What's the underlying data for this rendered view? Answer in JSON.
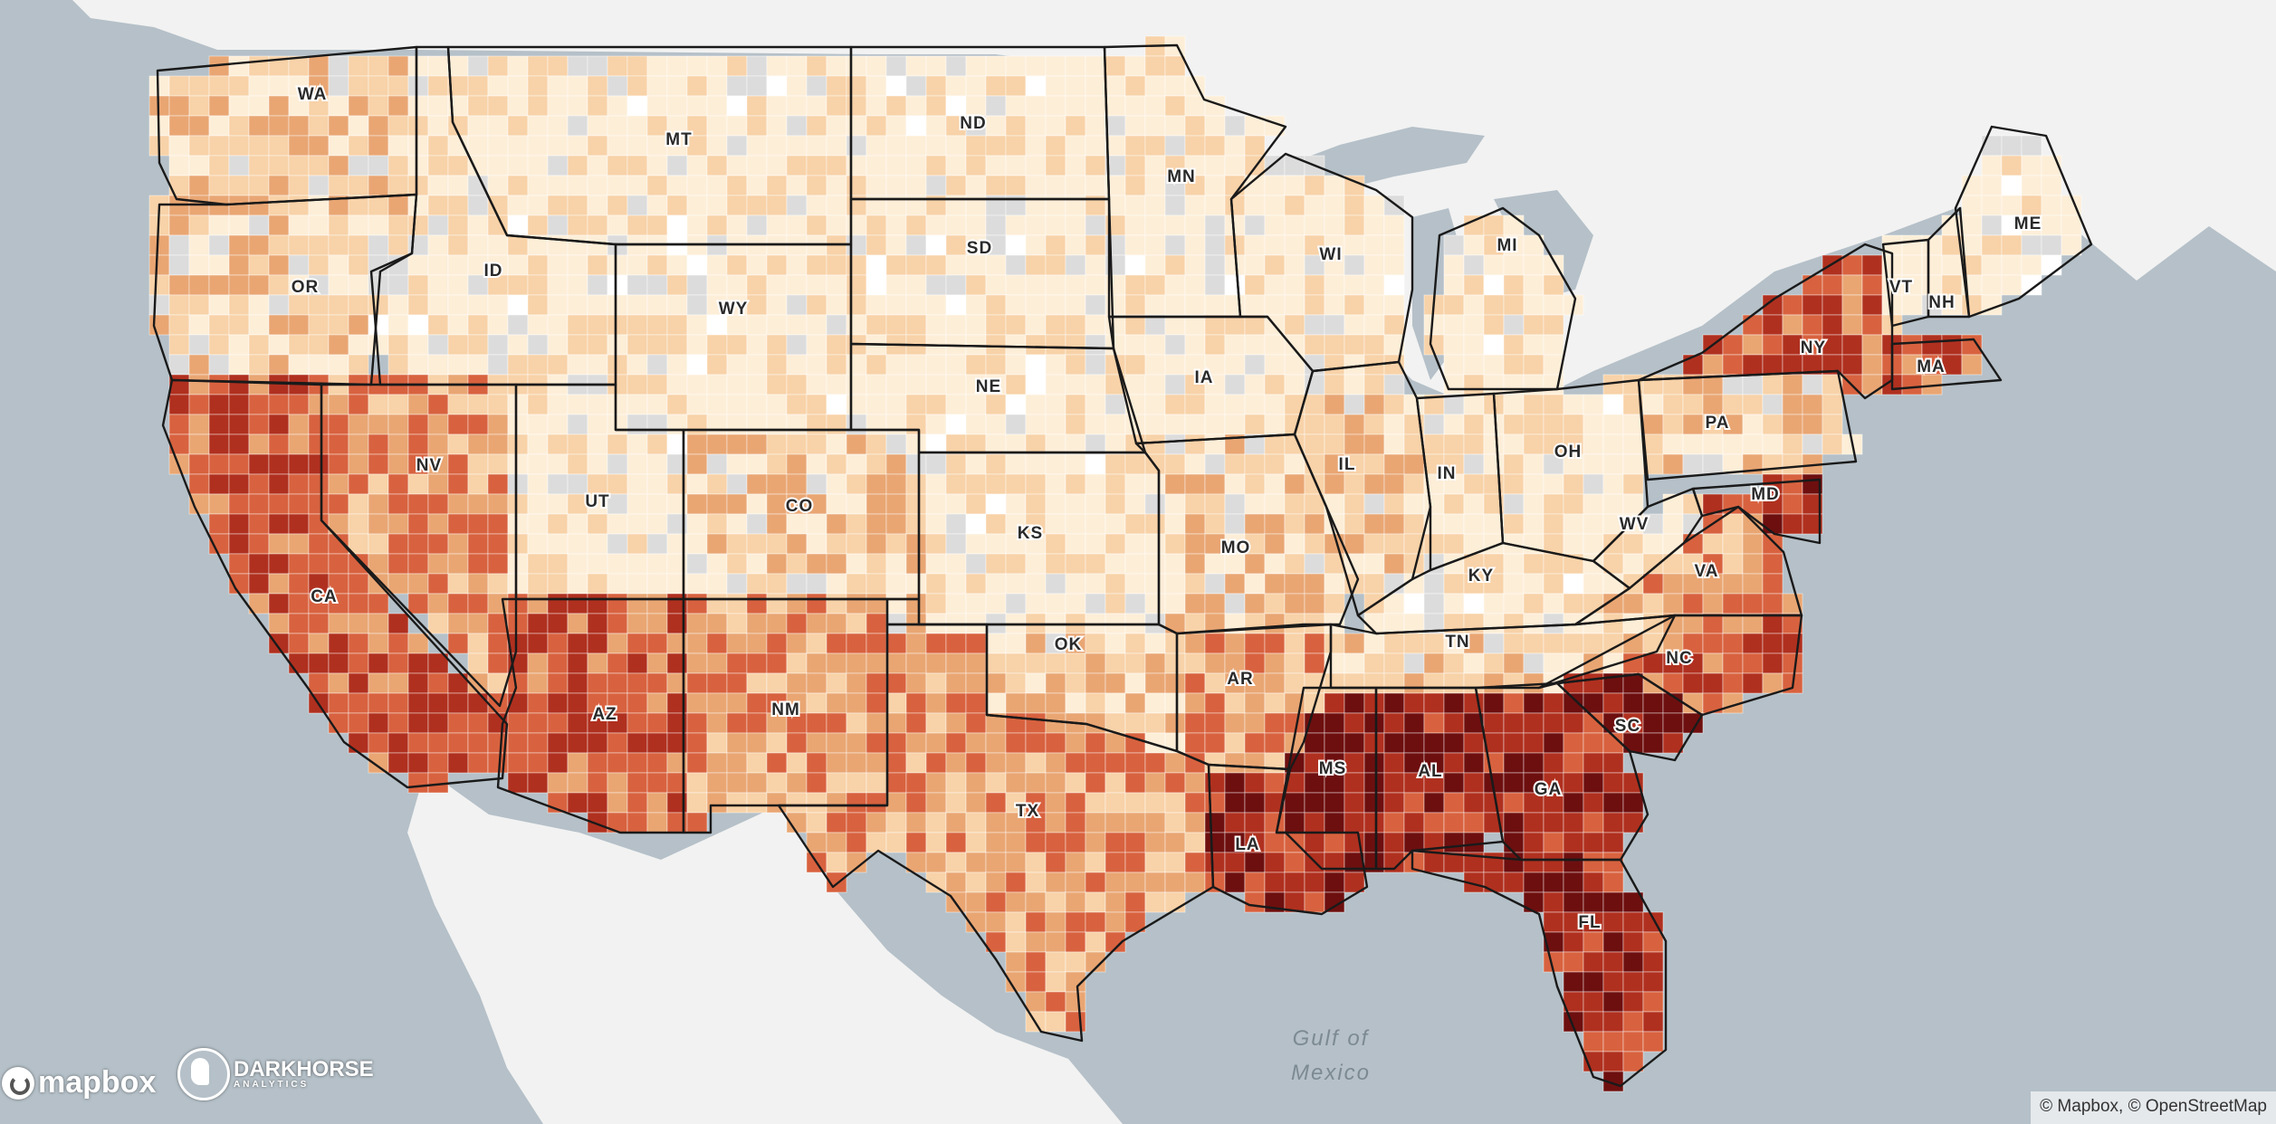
{
  "map": {
    "colors": {
      "water": "#b5c0c8",
      "land": "#f2f2f2",
      "no_data": "#dcdcdc",
      "missing": "#ffffff",
      "scale": [
        "#fdeed8",
        "#f8d2a8",
        "#e9a673",
        "#d8623f",
        "#b0301f",
        "#6e0f0f"
      ]
    },
    "states": [
      {
        "abbr": "WA",
        "level": 1
      },
      {
        "abbr": "OR",
        "level": 1
      },
      {
        "abbr": "CA",
        "level": 3
      },
      {
        "abbr": "NV",
        "level": 2
      },
      {
        "abbr": "ID",
        "level": 0
      },
      {
        "abbr": "MT",
        "level": 0
      },
      {
        "abbr": "WY",
        "level": 0
      },
      {
        "abbr": "UT",
        "level": 0
      },
      {
        "abbr": "AZ",
        "level": 3
      },
      {
        "abbr": "CO",
        "level": 1
      },
      {
        "abbr": "NM",
        "level": 2
      },
      {
        "abbr": "ND",
        "level": 0
      },
      {
        "abbr": "SD",
        "level": 0
      },
      {
        "abbr": "NE",
        "level": 0
      },
      {
        "abbr": "KS",
        "level": 0
      },
      {
        "abbr": "OK",
        "level": 1
      },
      {
        "abbr": "TX",
        "level": 2
      },
      {
        "abbr": "MN",
        "level": 0
      },
      {
        "abbr": "IA",
        "level": 0
      },
      {
        "abbr": "MO",
        "level": 1
      },
      {
        "abbr": "AR",
        "level": 2
      },
      {
        "abbr": "LA",
        "level": 4
      },
      {
        "abbr": "WI",
        "level": 0
      },
      {
        "abbr": "IL",
        "level": 1
      },
      {
        "abbr": "MS",
        "level": 5
      },
      {
        "abbr": "MI",
        "level": 0
      },
      {
        "abbr": "IN",
        "level": 0
      },
      {
        "abbr": "KY",
        "level": 0
      },
      {
        "abbr": "TN",
        "level": 1
      },
      {
        "abbr": "AL",
        "level": 4
      },
      {
        "abbr": "OH",
        "level": 0
      },
      {
        "abbr": "GA",
        "level": 4
      },
      {
        "abbr": "FL",
        "level": 4
      },
      {
        "abbr": "SC",
        "level": 5
      },
      {
        "abbr": "NC",
        "level": 3
      },
      {
        "abbr": "VA",
        "level": 2
      },
      {
        "abbr": "WV",
        "level": 0
      },
      {
        "abbr": "PA",
        "level": 1
      },
      {
        "abbr": "NY",
        "level": 3
      },
      {
        "abbr": "VT",
        "level": 0
      },
      {
        "abbr": "NH",
        "level": 0
      },
      {
        "abbr": "ME",
        "level": 0
      },
      {
        "abbr": "MA",
        "level": 3
      },
      {
        "abbr": "MD",
        "level": 4
      }
    ],
    "water_label": {
      "line1": "Gulf of",
      "line2": "Mexico"
    }
  },
  "logos": {
    "mapbox": "mapbox",
    "darkhorse": "DARKHORSE",
    "darkhorse_sub": "ANALYTICS"
  },
  "attribution": "© Mapbox, © OpenStreetMap"
}
